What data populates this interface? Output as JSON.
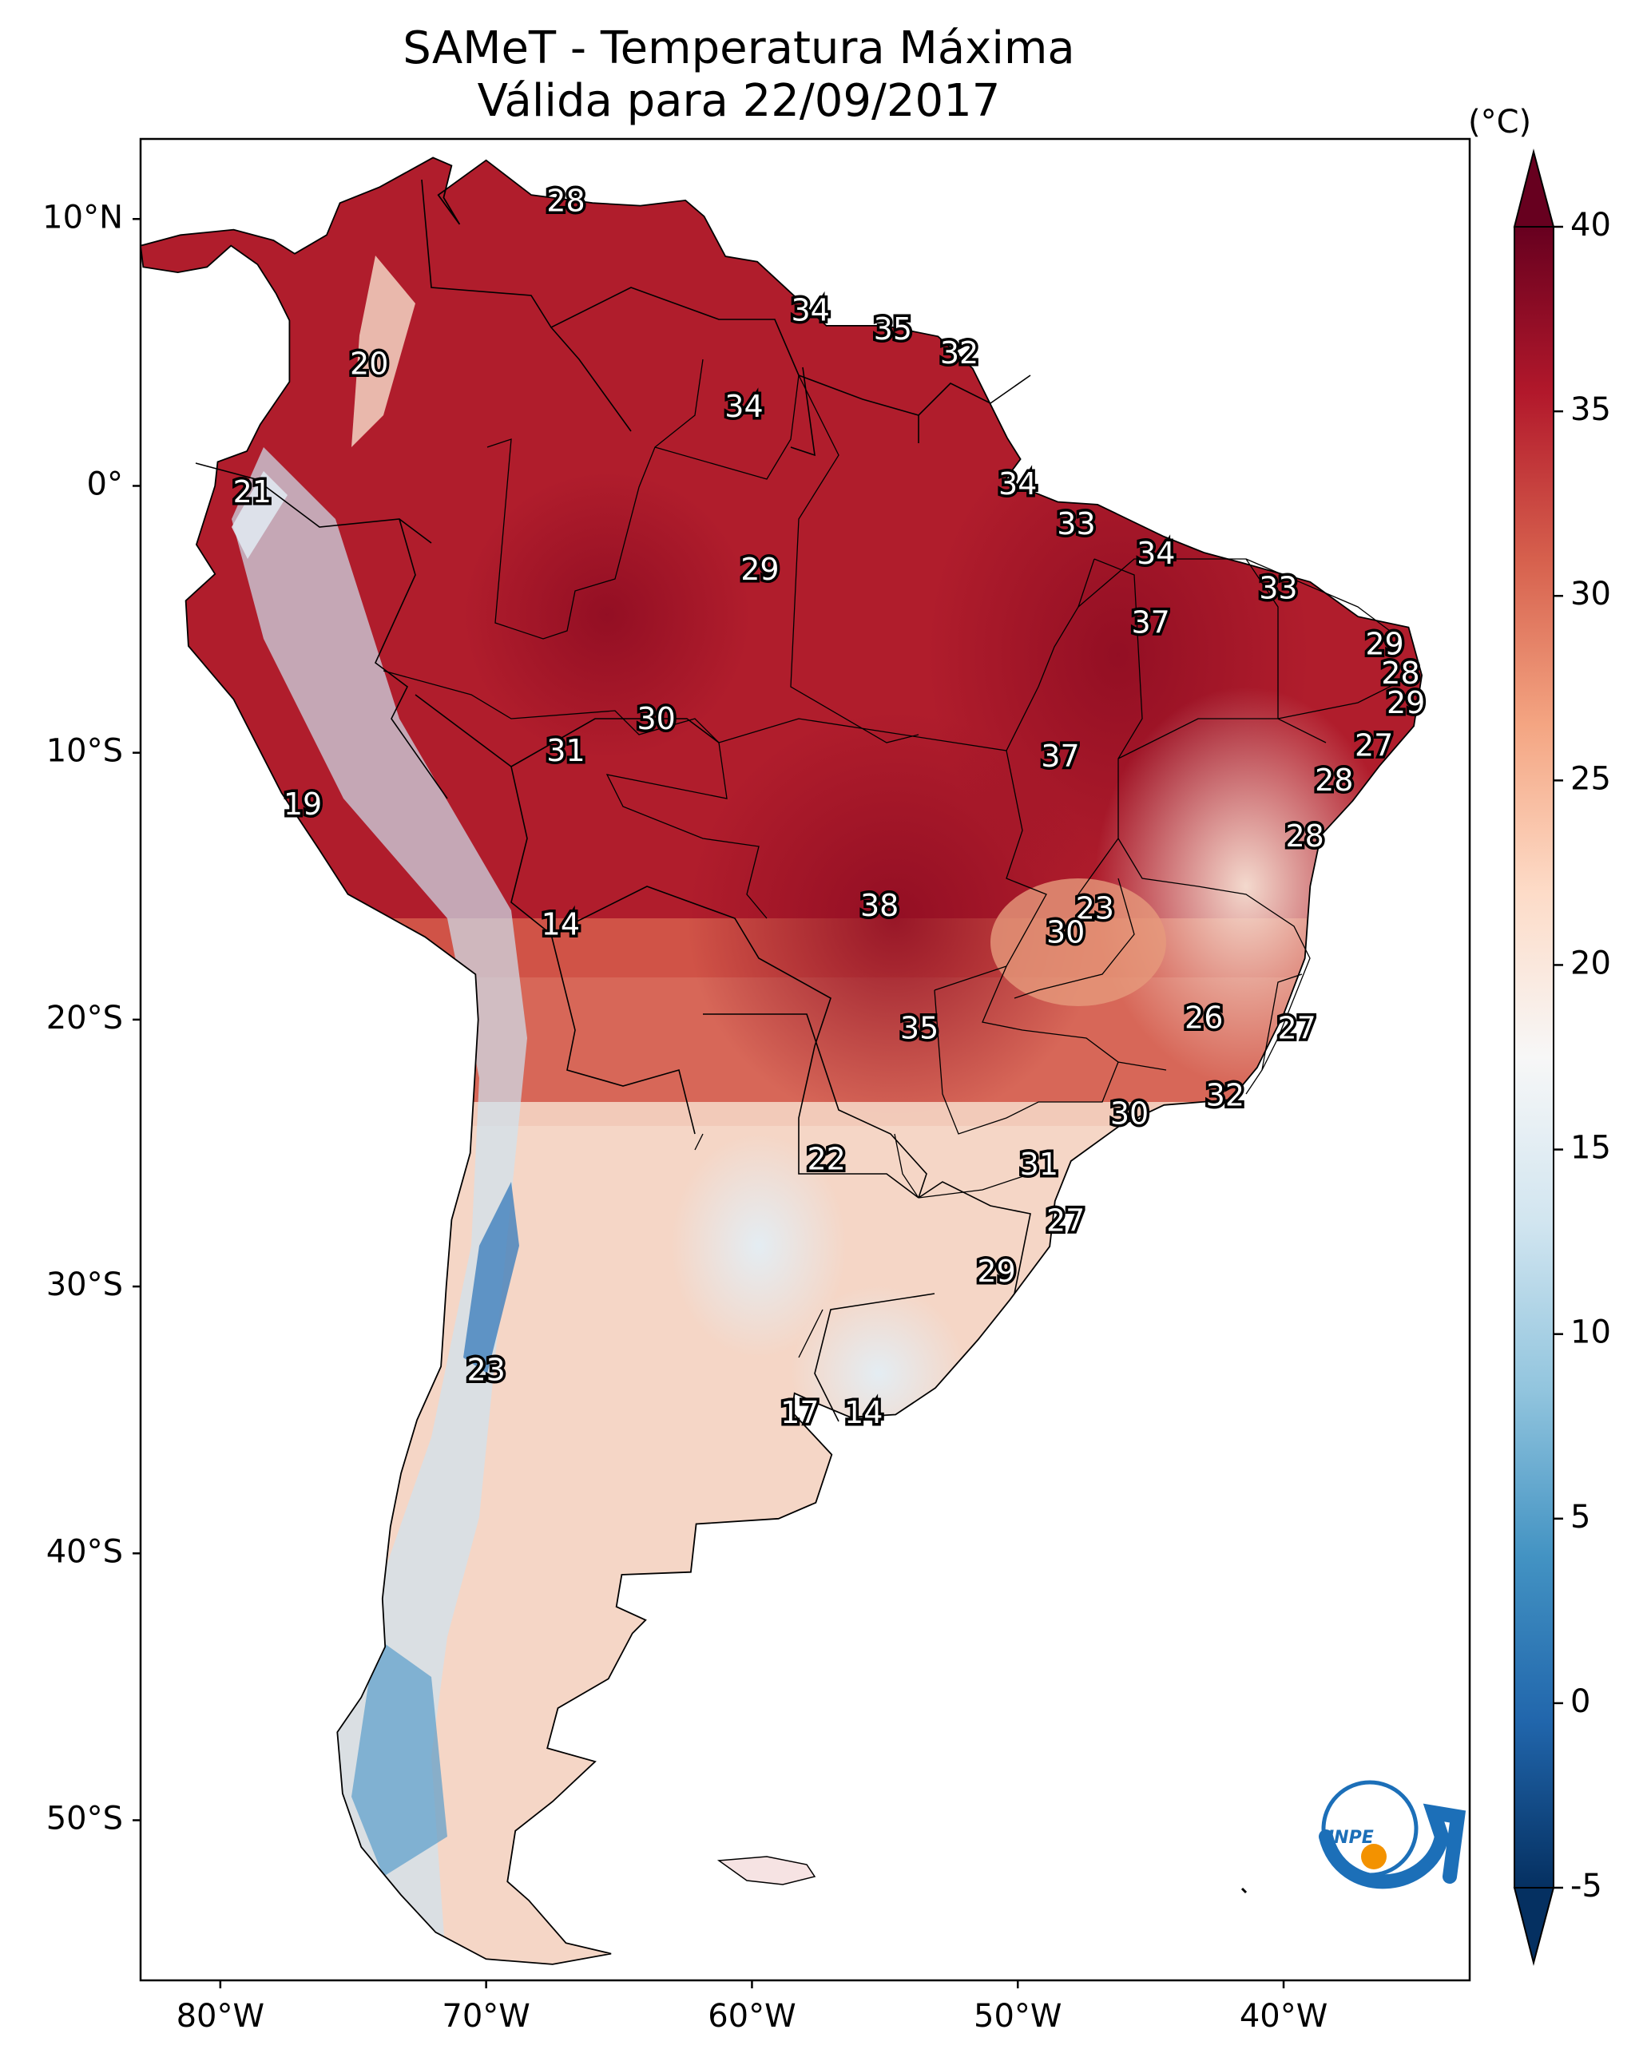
{
  "title": {
    "line1": "SAMeT - Temperatura Máxima",
    "line2": "Válida para 22/09/2017"
  },
  "colorbar": {
    "unit": "(°C)",
    "ticks": [
      "40",
      "35",
      "30",
      "25",
      "20",
      "15",
      "10",
      "5",
      "0",
      "-5"
    ],
    "colors": [
      "#67001f",
      "#b2182b",
      "#d6604d",
      "#f4a582",
      "#fddbc7",
      "#f7f7f7",
      "#d1e5f0",
      "#92c5de",
      "#4393c3",
      "#2166ac",
      "#053061"
    ]
  },
  "axes": {
    "lat_ticks": [
      "10°N",
      "0°",
      "10°S",
      "20°S",
      "30°S",
      "40°S",
      "50°S"
    ],
    "lon_ticks": [
      "80°W",
      "70°W",
      "60°W",
      "50°W",
      "40°W"
    ]
  },
  "logo": {
    "text": "INPE",
    "colors": {
      "ring": "#1c6fb8",
      "dot": "#f39200"
    }
  },
  "map_labels": [
    {
      "value": "28",
      "lon": -67.0,
      "lat": 10.6
    },
    {
      "value": "20",
      "lon": -74.4,
      "lat": 4.5
    },
    {
      "value": "21",
      "lon": -78.8,
      "lat": -0.3
    },
    {
      "value": "34",
      "lon": -57.8,
      "lat": 6.5
    },
    {
      "value": "35",
      "lon": -54.7,
      "lat": 5.8
    },
    {
      "value": "32",
      "lon": -52.2,
      "lat": 4.9
    },
    {
      "value": "34",
      "lon": -60.3,
      "lat": 2.9
    },
    {
      "value": "34",
      "lon": -50.0,
      "lat": 0.0
    },
    {
      "value": "33",
      "lon": -47.8,
      "lat": -1.5
    },
    {
      "value": "34",
      "lon": -44.8,
      "lat": -2.6
    },
    {
      "value": "33",
      "lon": -40.2,
      "lat": -3.9
    },
    {
      "value": "29",
      "lon": -59.7,
      "lat": -3.2
    },
    {
      "value": "37",
      "lon": -45.0,
      "lat": -5.2
    },
    {
      "value": "29",
      "lon": -36.2,
      "lat": -6.0
    },
    {
      "value": "28",
      "lon": -35.6,
      "lat": -7.1
    },
    {
      "value": "29",
      "lon": -35.4,
      "lat": -8.2
    },
    {
      "value": "27",
      "lon": -36.6,
      "lat": -9.8
    },
    {
      "value": "28",
      "lon": -38.1,
      "lat": -11.1
    },
    {
      "value": "28",
      "lon": -39.2,
      "lat": -13.2
    },
    {
      "value": "30",
      "lon": -63.6,
      "lat": -8.8
    },
    {
      "value": "31",
      "lon": -67.0,
      "lat": -10.0
    },
    {
      "value": "37",
      "lon": -48.4,
      "lat": -10.2
    },
    {
      "value": "19",
      "lon": -76.9,
      "lat": -12.0
    },
    {
      "value": "14",
      "lon": -67.2,
      "lat": -16.5
    },
    {
      "value": "38",
      "lon": -55.2,
      "lat": -15.8
    },
    {
      "value": "23",
      "lon": -47.1,
      "lat": -15.9
    },
    {
      "value": "30",
      "lon": -48.2,
      "lat": -16.8
    },
    {
      "value": "26",
      "lon": -43.0,
      "lat": -20.0
    },
    {
      "value": "27",
      "lon": -39.5,
      "lat": -20.4
    },
    {
      "value": "35",
      "lon": -53.7,
      "lat": -20.4
    },
    {
      "value": "32",
      "lon": -42.2,
      "lat": -22.9
    },
    {
      "value": "30",
      "lon": -45.8,
      "lat": -23.6
    },
    {
      "value": "22",
      "lon": -57.2,
      "lat": -25.3
    },
    {
      "value": "31",
      "lon": -49.2,
      "lat": -25.5
    },
    {
      "value": "27",
      "lon": -48.2,
      "lat": -27.6
    },
    {
      "value": "29",
      "lon": -50.8,
      "lat": -29.5
    },
    {
      "value": "23",
      "lon": -70.0,
      "lat": -33.2
    },
    {
      "value": "17",
      "lon": -58.2,
      "lat": -34.8
    },
    {
      "value": "14",
      "lon": -55.8,
      "lat": -34.8
    }
  ]
}
